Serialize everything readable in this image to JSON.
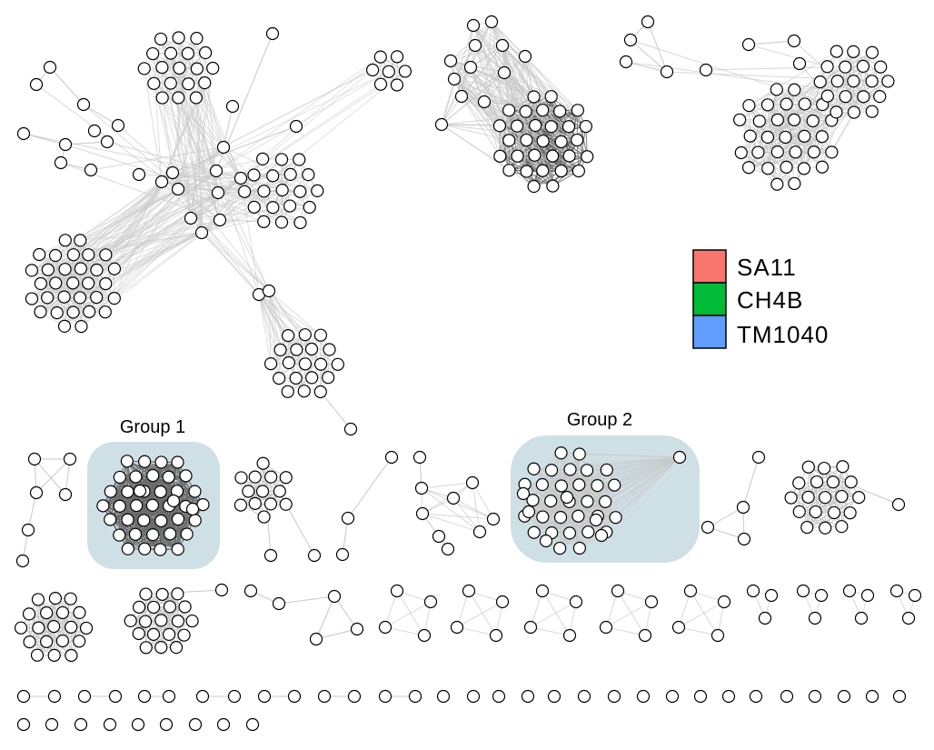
{
  "legend": {
    "items": [
      {
        "label": "SA11",
        "color": "#f8766d"
      },
      {
        "label": "CH4B",
        "color": "#00ba38"
      },
      {
        "label": "TM1040",
        "color": "#619cff"
      }
    ]
  },
  "groups": [
    {
      "label": "Group 1"
    },
    {
      "label": "Group 2"
    }
  ],
  "colors": {
    "node_fill": "#ffffff",
    "node_stroke": "#000000",
    "dark_node_fill": "#555555",
    "group_background": "#cfdfe6",
    "edge_light": "#c8c8c8",
    "edge_dark": "#6a6a6a"
  }
}
